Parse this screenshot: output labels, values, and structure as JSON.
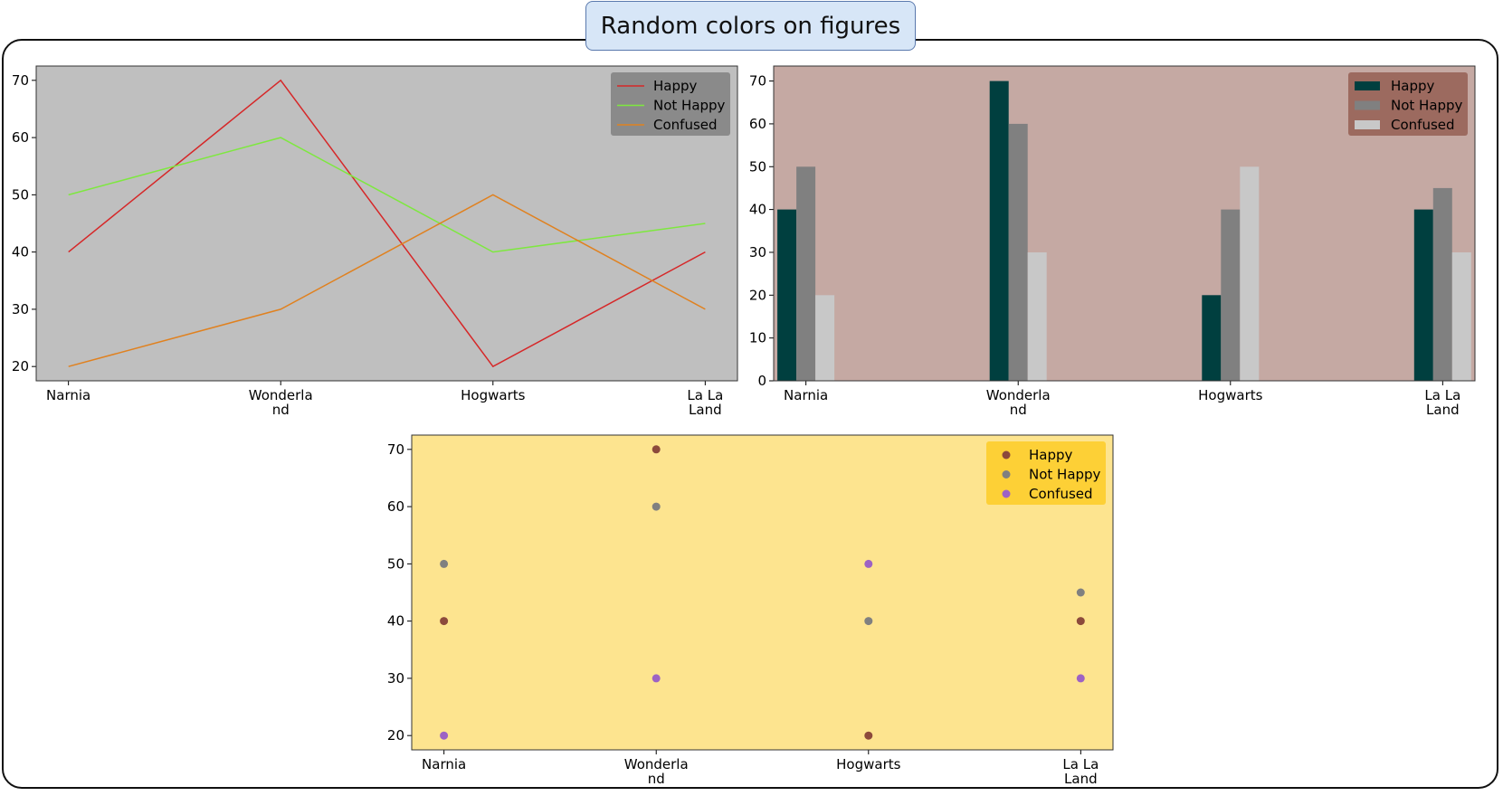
{
  "figure": {
    "title": "Random colors on figures"
  },
  "chart_data": [
    {
      "id": "line",
      "type": "line",
      "title": "",
      "xlabel": "",
      "ylabel": "",
      "categories": [
        "Narnia",
        "Wonderland",
        "Hogwarts",
        "La La Land"
      ],
      "tick_labels": [
        [
          "Narnia"
        ],
        [
          "Wonderla",
          "nd"
        ],
        [
          "Hogwarts"
        ],
        [
          "La La",
          "Land"
        ]
      ],
      "ylim": [
        17.5,
        72.5
      ],
      "yticks": [
        20,
        30,
        40,
        50,
        60,
        70
      ],
      "background": "#bfbfbf",
      "legend": {
        "placement": "top-right",
        "background": "#8a8a8a"
      },
      "grid": false,
      "series": [
        {
          "name": "Happy",
          "values": [
            40,
            70,
            20,
            40
          ],
          "color": "#d62728"
        },
        {
          "name": "Not Happy",
          "values": [
            50,
            60,
            40,
            45
          ],
          "color": "#7ee83f"
        },
        {
          "name": "Confused",
          "values": [
            20,
            30,
            50,
            30
          ],
          "color": "#e0811f"
        }
      ]
    },
    {
      "id": "bar",
      "type": "bar",
      "title": "",
      "xlabel": "",
      "ylabel": "",
      "categories": [
        "Narnia",
        "Wonderland",
        "Hogwarts",
        "La La Land"
      ],
      "tick_labels": [
        [
          "Narnia"
        ],
        [
          "Wonderla",
          "nd"
        ],
        [
          "Hogwarts"
        ],
        [
          "La La",
          "Land"
        ]
      ],
      "ylim": [
        0,
        73.5
      ],
      "yticks": [
        0,
        10,
        20,
        30,
        40,
        50,
        60,
        70
      ],
      "background": "#c5a9a3",
      "legend": {
        "placement": "top-right",
        "background": "#9c6a5f"
      },
      "grid": false,
      "series": [
        {
          "name": "Happy",
          "values": [
            40,
            70,
            20,
            40
          ],
          "color": "#003f3f"
        },
        {
          "name": "Not Happy",
          "values": [
            50,
            60,
            40,
            45
          ],
          "color": "#808080"
        },
        {
          "name": "Confused",
          "values": [
            20,
            30,
            50,
            30
          ],
          "color": "#c8c8c8"
        }
      ]
    },
    {
      "id": "scatter",
      "type": "scatter",
      "title": "",
      "xlabel": "",
      "ylabel": "",
      "categories": [
        "Narnia",
        "Wonderland",
        "Hogwarts",
        "La La Land"
      ],
      "tick_labels": [
        [
          "Narnia"
        ],
        [
          "Wonderla",
          "nd"
        ],
        [
          "Hogwarts"
        ],
        [
          "La La",
          "Land"
        ]
      ],
      "ylim": [
        17.5,
        72.5
      ],
      "yticks": [
        20,
        30,
        40,
        50,
        60,
        70
      ],
      "background": "#fde48f",
      "legend": {
        "placement": "top-right",
        "background": "#fdd036"
      },
      "grid": false,
      "series": [
        {
          "name": "Happy",
          "values": [
            40,
            70,
            20,
            40
          ],
          "color": "#8c4a3c"
        },
        {
          "name": "Not Happy",
          "values": [
            50,
            60,
            40,
            45
          ],
          "color": "#808080"
        },
        {
          "name": "Confused",
          "values": [
            20,
            30,
            50,
            30
          ],
          "color": "#9d62c4"
        }
      ]
    }
  ]
}
